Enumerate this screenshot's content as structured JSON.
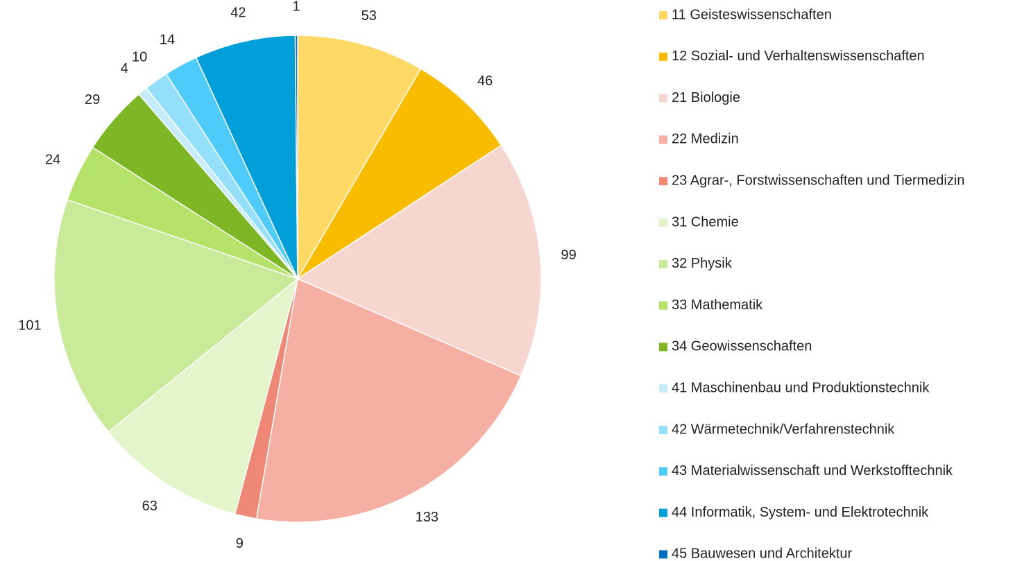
{
  "chart_data": {
    "type": "pie",
    "categories": [
      "11 Geisteswissenschaften",
      "12 Sozial- und Verhaltenswissenschaften",
      "21 Biologie",
      "22 Medizin",
      "23 Agrar-, Forstwissenschaften und Tiermedizin",
      "31 Chemie",
      "32 Physik",
      "33 Mathematik",
      "34 Geowissenschaften",
      "41 Maschinenbau und Produktionstechnik",
      "42 Wärmetechnik/Verfahrenstechnik",
      "43 Materialwissenschaft und Werkstofftechnik",
      "44 Informatik, System- und Elektrotechnik",
      "45 Bauwesen und Architektur"
    ],
    "values": [
      53,
      46,
      99,
      133,
      9,
      63,
      101,
      24,
      29,
      4,
      10,
      14,
      42,
      1
    ],
    "colors": [
      "#ffd966",
      "#f8bc00",
      "#f8d6d0",
      "#f6afa3",
      "#f08878",
      "#e4f5cb",
      "#c9ea98",
      "#b5e36a",
      "#7db726",
      "#c6ecfa",
      "#94e0fb",
      "#4fcbfa",
      "#009fd9",
      "#0070c0"
    ],
    "legend": "right"
  }
}
